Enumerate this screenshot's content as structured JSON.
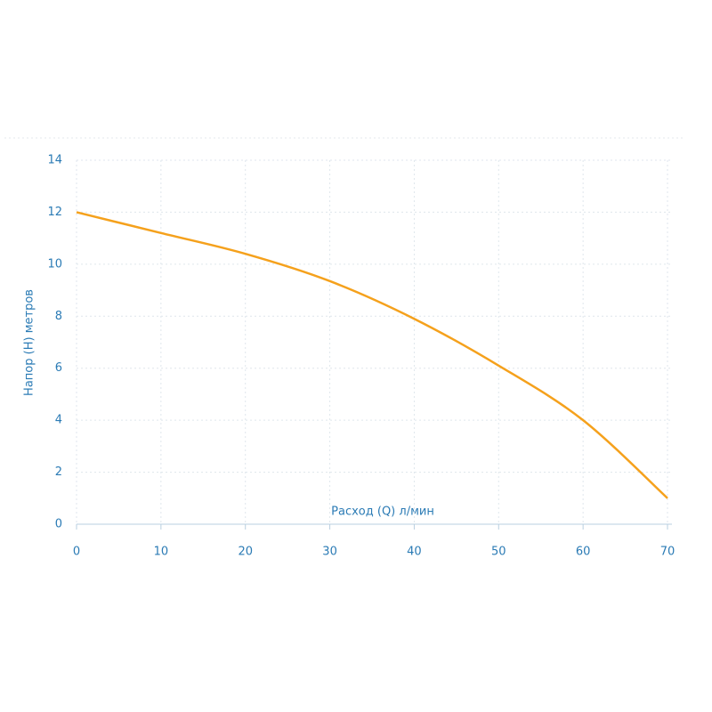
{
  "chart_data": {
    "type": "line",
    "x_label": "Расход (Q) л/мин",
    "y_label": "Напор (H) метров",
    "x": [
      0,
      10,
      20,
      30,
      40,
      50,
      60,
      70
    ],
    "series": [
      {
        "color": "#f5a11c",
        "values": [
          12,
          11.2,
          10.4,
          9.35,
          7.9,
          6.1,
          4.0,
          1.0
        ]
      }
    ],
    "xlim": [
      0,
      70
    ],
    "ylim": [
      0,
      14
    ],
    "xticks": [
      0,
      10,
      20,
      30,
      40,
      50,
      60,
      70
    ],
    "yticks": [
      0,
      2,
      4,
      6,
      8,
      10,
      12,
      14
    ],
    "grid": true
  }
}
